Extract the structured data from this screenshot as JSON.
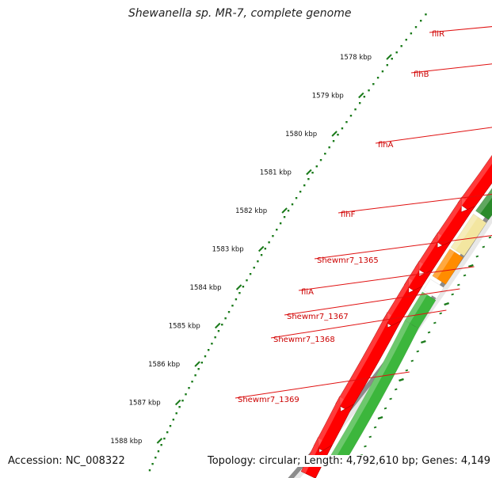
{
  "title": "Shewanella sp. MR-7, complete genome",
  "accession": "Accession: NC_008322",
  "summary": "Topology: circular; Length: 4,792,610 bp; Genes: 4,149",
  "ruler_labels": [
    "1578 kbp",
    "1579 kbp",
    "1580 kbp",
    "1581 kbp",
    "1582 kbp",
    "1583 kbp",
    "1584 kbp",
    "1585 kbp",
    "1586 kbp",
    "1587 kbp",
    "1588 kbp"
  ],
  "genes": [
    {
      "name": "fliR",
      "color": "#a6e83c"
    },
    {
      "name": "flhB",
      "color": "#a6e83c"
    },
    {
      "name": "flhA",
      "color": "#a6e83c"
    },
    {
      "name": "flhF",
      "color": "#2a8a2a"
    },
    {
      "name": "Shewmr7_1365",
      "color": "#f3e6a0"
    },
    {
      "name": "fliA",
      "color": "#ff8c00"
    },
    {
      "name": "Shewmr7_1367",
      "color": "#ffffff"
    },
    {
      "name": "Shewmr7_1368",
      "color": "#3cb63c"
    },
    {
      "name": "Shewmr7_1369",
      "color": "#3cb63c"
    }
  ],
  "colors": {
    "forward_strand": "#ff0000",
    "backbone": "#8c8c8c",
    "label_line": "#e01010",
    "label_text": "#cc0000",
    "ruler": "#1a7a1a"
  }
}
